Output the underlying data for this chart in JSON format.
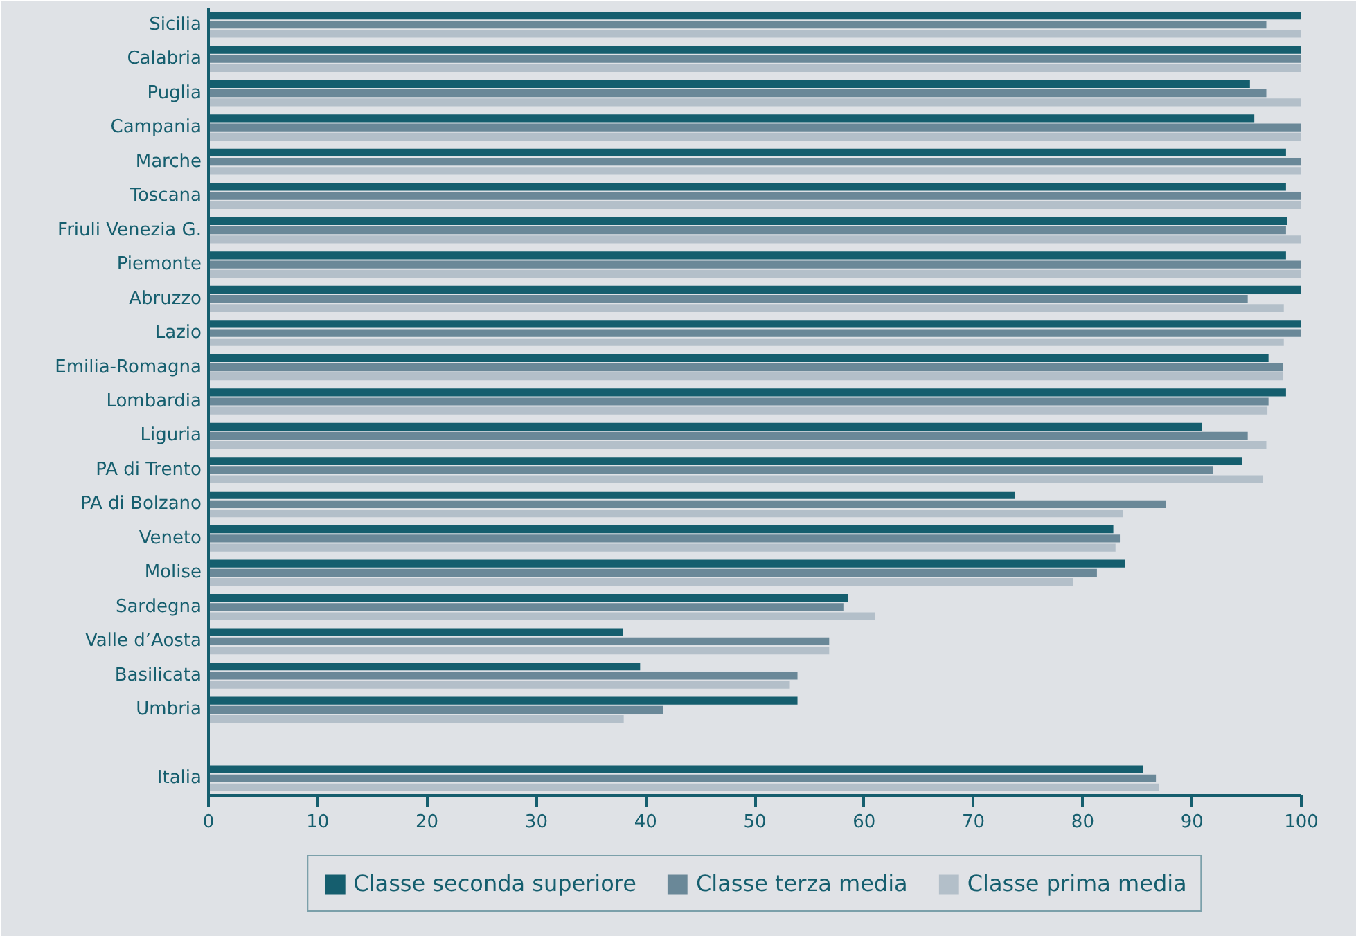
{
  "chart_data": {
    "type": "bar",
    "orientation": "horizontal",
    "categories": [
      "Sicilia",
      "Calabria",
      "Puglia",
      "Campania",
      "Marche",
      "Toscana",
      "Friuli Venezia G.",
      "Piemonte",
      "Abruzzo",
      "Lazio",
      "Emilia-Romagna",
      "Lombardia",
      "Liguria",
      "PA di Trento",
      "PA di Bolzano",
      "Veneto",
      "Molise",
      "Sardegna",
      "Valle d’Aosta",
      "Basilicata",
      "Umbria",
      null,
      "Italia"
    ],
    "series": [
      {
        "name": "Classe seconda superiore",
        "color": "#155e6e",
        "values": [
          100,
          100,
          95.3,
          95.7,
          98.6,
          98.6,
          98.7,
          98.6,
          100,
          100,
          97.0,
          98.6,
          90.9,
          94.6,
          73.8,
          82.8,
          83.9,
          58.5,
          37.9,
          39.5,
          53.9,
          null,
          85.5
        ]
      },
      {
        "name": "Classe terza media",
        "color": "#6a8898",
        "values": [
          96.8,
          100,
          96.8,
          100,
          100,
          100,
          98.6,
          100,
          95.1,
          100,
          98.3,
          97.0,
          95.1,
          91.9,
          87.6,
          83.4,
          81.3,
          58.1,
          56.8,
          53.9,
          41.6,
          null,
          86.7
        ]
      },
      {
        "name": "Classe prima media",
        "color": "#b3bfc9",
        "values": [
          100,
          100,
          100,
          100,
          100,
          100,
          100,
          100,
          98.4,
          98.4,
          98.3,
          96.9,
          96.8,
          96.5,
          83.7,
          83.0,
          79.1,
          61.0,
          56.8,
          53.2,
          38.0,
          null,
          87.0
        ]
      }
    ],
    "xlim": [
      0,
      100
    ],
    "xticks": [
      0,
      10,
      20,
      30,
      40,
      50,
      60,
      70,
      80,
      90,
      100
    ],
    "grid": false,
    "legend": "bottom"
  }
}
